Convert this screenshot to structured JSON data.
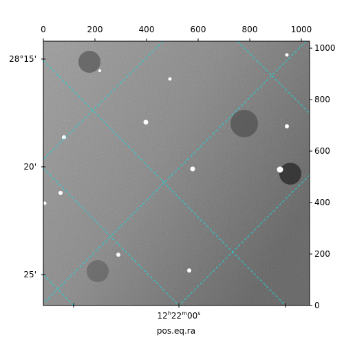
{
  "chart_data": {
    "type": "image",
    "xlim": [
      0,
      1032
    ],
    "ylim": [
      0,
      1027
    ],
    "xticks": [
      0,
      200,
      400,
      600,
      800,
      1000
    ],
    "yticks": [
      0,
      200,
      400,
      600,
      800,
      1000
    ],
    "xlabel": "pos.eq.ra",
    "dec_tick_labels": [
      "28°15'",
      "20'",
      "25'"
    ],
    "ra_tick_label": [
      "12",
      "h",
      "22",
      "m",
      "00",
      "s"
    ],
    "grid_color": "#22d3d3"
  }
}
